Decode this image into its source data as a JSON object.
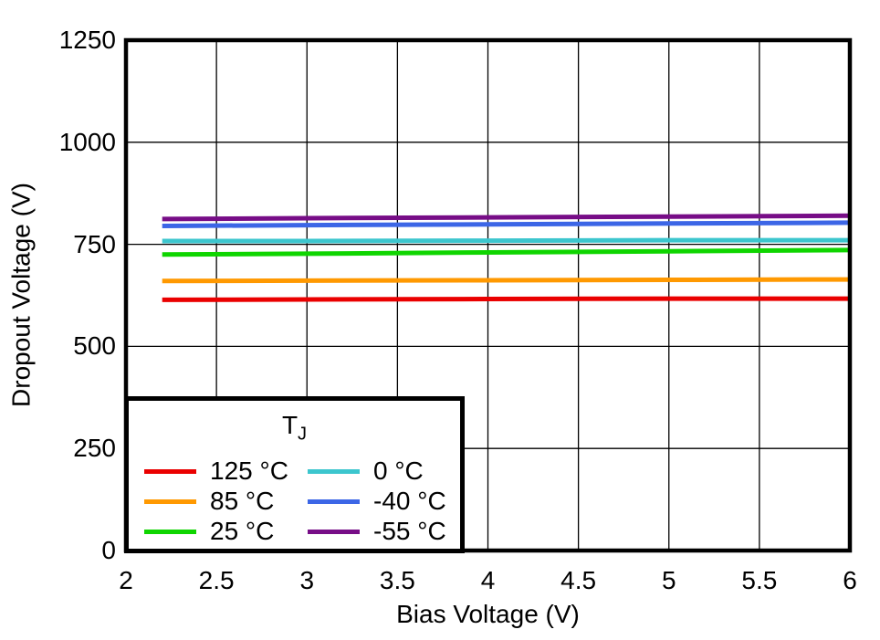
{
  "chart_data": {
    "type": "line",
    "title": "",
    "xlabel": "Bias Voltage (V)",
    "ylabel": "Dropout Voltage (V)",
    "xlim": [
      2,
      6
    ],
    "ylim": [
      0,
      1250
    ],
    "x_ticks": [
      2,
      2.5,
      3,
      3.5,
      4,
      4.5,
      5,
      5.5,
      6
    ],
    "x_tick_labels": [
      "2",
      "2.5",
      "3",
      "3.5",
      "4",
      "4.5",
      "5",
      "5.5",
      "6"
    ],
    "y_ticks": [
      0,
      250,
      500,
      750,
      1000,
      1250
    ],
    "y_tick_labels": [
      "0",
      "250",
      "500",
      "750",
      "1000",
      "1250"
    ],
    "grid": true,
    "frame_color": "#000000",
    "x": [
      2.2,
      3,
      4,
      5,
      6
    ],
    "series": [
      {
        "name": "125 °C",
        "color": "#EA0000",
        "values": [
          614,
          615,
          616,
          617,
          617
        ]
      },
      {
        "name": "85 °C",
        "color": "#FF9901",
        "values": [
          660,
          661,
          662,
          663,
          664
        ]
      },
      {
        "name": "25 °C",
        "color": "#0FD500",
        "values": [
          725,
          727,
          730,
          733,
          736
        ]
      },
      {
        "name": "0 °C",
        "color": "#3CC6CE",
        "values": [
          758,
          758,
          759,
          760,
          760
        ]
      },
      {
        "name": "-40 °C",
        "color": "#3C66E6",
        "values": [
          795,
          797,
          799,
          801,
          803
        ]
      },
      {
        "name": "-55 °C",
        "color": "#770D87",
        "values": [
          812,
          814,
          816,
          818,
          820
        ]
      }
    ],
    "legend": {
      "title_main": "T",
      "title_sub": "J",
      "position": "lower left",
      "columns": [
        [
          0,
          1,
          2
        ],
        [
          3,
          4,
          5
        ]
      ]
    }
  }
}
